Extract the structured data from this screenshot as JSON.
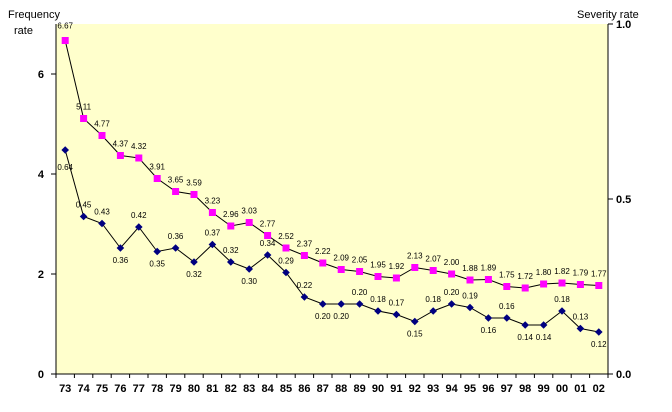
{
  "chart_data": {
    "type": "line",
    "categories": [
      "73",
      "74",
      "75",
      "76",
      "77",
      "78",
      "79",
      "80",
      "81",
      "82",
      "83",
      "84",
      "85",
      "86",
      "87",
      "88",
      "89",
      "90",
      "91",
      "92",
      "93",
      "94",
      "95",
      "96",
      "97",
      "98",
      "99",
      "00",
      "01",
      "02"
    ],
    "y_left_label_line1": "Frequency",
    "y_left_label_line2": "rate",
    "y_right_label": "Severity rate",
    "y_left_range": [
      0,
      7
    ],
    "y_left_ticks": [
      "0",
      "2",
      "4",
      "6"
    ],
    "y_right_range": [
      0.0,
      1.0
    ],
    "y_right_ticks": [
      "0.0",
      "0.5",
      "1.0"
    ],
    "plot_background": "#FFFFCC",
    "grid": false,
    "legend": "none",
    "series": [
      {
        "axis": "left",
        "color": "#FF00FF",
        "marker": "square",
        "values": [
          6.67,
          5.11,
          4.77,
          4.37,
          4.32,
          3.91,
          3.65,
          3.59,
          3.23,
          2.96,
          3.03,
          2.77,
          2.52,
          2.37,
          2.22,
          2.09,
          2.05,
          1.95,
          1.92,
          2.13,
          2.07,
          2.0,
          1.88,
          1.89,
          1.75,
          1.72,
          1.8,
          1.82,
          1.79,
          1.77
        ],
        "labels": [
          "6.67",
          "5.11",
          "4.77",
          "4.37",
          "4.32",
          "3.91",
          "3.65",
          "3.59",
          "3.23",
          "2.96",
          "3.03",
          "2.77",
          "2.52",
          "2.37",
          "2.22",
          "2.09",
          "2.05",
          "1.95",
          "1.92",
          "2.13",
          "2.07",
          "2.00",
          "1.88",
          "1.89",
          "1.75",
          "1.72",
          "1.80",
          "1.82",
          "1.79",
          "1.77"
        ]
      },
      {
        "axis": "right",
        "color": "#000080",
        "marker": "diamond",
        "values": [
          0.64,
          0.45,
          0.43,
          0.36,
          0.42,
          0.35,
          0.36,
          0.32,
          0.37,
          0.32,
          0.3,
          0.34,
          0.29,
          0.22,
          0.2,
          0.2,
          0.2,
          0.18,
          0.17,
          0.15,
          0.18,
          0.2,
          0.19,
          0.16,
          0.16,
          0.14,
          0.14,
          0.18,
          0.13,
          0.12
        ],
        "labels": [
          "0.64",
          "0.45",
          "0.43",
          "0.36",
          "0.42",
          "0.35",
          "0.36",
          "0.32",
          "0.37",
          "0.32",
          "0.30",
          "0.34",
          "0.29",
          "0.22",
          "0.20",
          "0.20",
          "0.20",
          "0.18",
          "0.17",
          "0.15",
          "0.18",
          "0.20",
          "0.19",
          "0.16",
          "0.16",
          "0.14",
          "0.14",
          "0.18",
          "0.13",
          "0.12"
        ]
      }
    ]
  }
}
